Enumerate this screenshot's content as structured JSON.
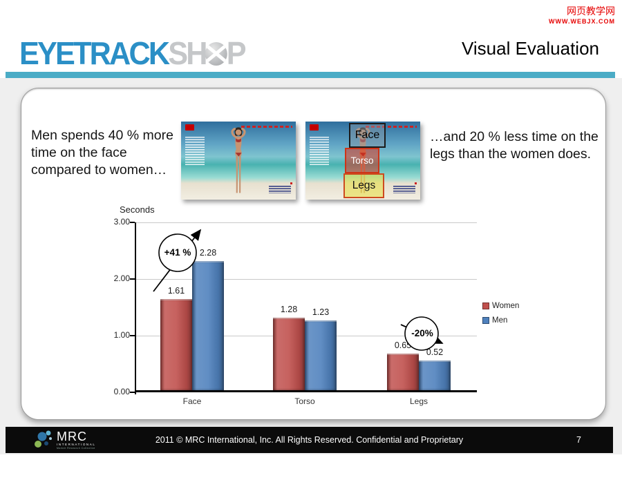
{
  "watermark": {
    "line1": "网页教学网",
    "line2": "WWW.WEBJX.COM"
  },
  "header": {
    "logo": {
      "part1": "EYETRACK",
      "part2": "SH",
      "part3": "P"
    },
    "title": "Visual Evaluation",
    "accent_color": "#4bacc6"
  },
  "content": {
    "left_text": "Men spends 40 % more time on the face compared to women…",
    "right_text": "…and 20 % less time on the legs than the women does.",
    "overlays": {
      "face": "Face",
      "torso": "Torso",
      "legs": "Legs"
    }
  },
  "chart_data": {
    "type": "bar",
    "title": "",
    "ylabel": "Seconds",
    "xlabel": "",
    "categories": [
      "Face",
      "Torso",
      "Legs"
    ],
    "series": [
      {
        "name": "Women",
        "color": "#c0504d",
        "values": [
          1.61,
          1.28,
          0.65
        ]
      },
      {
        "name": "Men",
        "color": "#4f81bd",
        "values": [
          2.28,
          1.23,
          0.52
        ]
      }
    ],
    "ylim": [
      0,
      3
    ],
    "yticks": [
      "3.00",
      "2.00",
      "1.00",
      "0.00"
    ],
    "grid": true,
    "legend_position": "right",
    "annotations": [
      {
        "label": "+41 %",
        "target": "Face"
      },
      {
        "label": "-20%",
        "target": "Legs"
      }
    ]
  },
  "footer": {
    "logo_name": "MRC",
    "logo_sub": "INTERNATIONAL",
    "logo_sub2": "Market Research Collective",
    "copyright": "2011 © MRC International, Inc. All Rights Reserved. Confidential and Proprietary",
    "page": "7"
  }
}
